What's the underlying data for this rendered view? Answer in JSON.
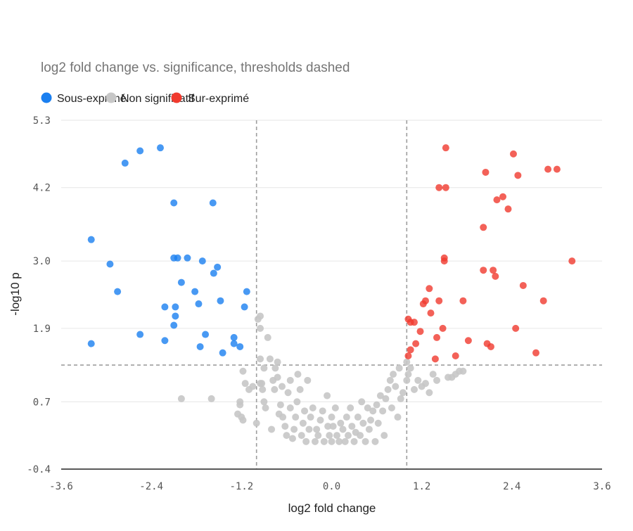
{
  "chart_data": {
    "type": "scatter",
    "subtitle": "log2 fold change vs. significance, thresholds dashed",
    "xlabel": "log2 fold change",
    "ylabel": "-log10 p",
    "xlim": [
      -3.6,
      3.6
    ],
    "ylim": [
      -0.4,
      5.3
    ],
    "x_ticks": [
      "-3.6",
      "-2.4",
      "-1.2",
      "0.0",
      "1.2",
      "2.4",
      "3.6"
    ],
    "y_ticks": [
      "-0.4",
      "0.7",
      "1.9",
      "3.0",
      "4.2",
      "5.3"
    ],
    "grid": "horizontal",
    "legend_position": "top-left",
    "thresholds": {
      "x": [
        -1.0,
        1.0
      ],
      "y": 1.3
    },
    "series": [
      {
        "name": "Sous-exprimé",
        "color": "#1a7ff0",
        "points": [
          [
            -3.2,
            3.35
          ],
          [
            -3.2,
            1.65
          ],
          [
            -2.95,
            2.95
          ],
          [
            -2.85,
            2.5
          ],
          [
            -2.75,
            4.6
          ],
          [
            -2.55,
            4.8
          ],
          [
            -2.55,
            1.8
          ],
          [
            -2.28,
            4.85
          ],
          [
            -2.22,
            2.25
          ],
          [
            -2.22,
            1.7
          ],
          [
            -2.1,
            3.95
          ],
          [
            -2.1,
            3.05
          ],
          [
            -2.1,
            1.95
          ],
          [
            -2.08,
            2.25
          ],
          [
            -2.08,
            2.1
          ],
          [
            -2.05,
            3.05
          ],
          [
            -2.0,
            2.65
          ],
          [
            -1.92,
            3.05
          ],
          [
            -1.82,
            2.5
          ],
          [
            -1.77,
            2.3
          ],
          [
            -1.75,
            1.6
          ],
          [
            -1.72,
            3.0
          ],
          [
            -1.68,
            1.8
          ],
          [
            -1.58,
            3.95
          ],
          [
            -1.57,
            2.8
          ],
          [
            -1.52,
            2.9
          ],
          [
            -1.48,
            2.35
          ],
          [
            -1.45,
            1.5
          ],
          [
            -1.3,
            1.75
          ],
          [
            -1.3,
            1.65
          ],
          [
            -1.22,
            1.6
          ],
          [
            -1.16,
            2.25
          ],
          [
            -1.13,
            2.5
          ]
        ]
      },
      {
        "name": "Non significatif",
        "color": "#c7c7c7",
        "points": [
          [
            -2.0,
            0.75
          ],
          [
            -1.6,
            0.75
          ],
          [
            -1.25,
            0.5
          ],
          [
            -1.22,
            0.7
          ],
          [
            -1.22,
            0.65
          ],
          [
            -1.2,
            0.45
          ],
          [
            -1.18,
            0.4
          ],
          [
            -1.18,
            1.2
          ],
          [
            -1.15,
            1.0
          ],
          [
            -1.1,
            0.9
          ],
          [
            -1.05,
            0.95
          ],
          [
            -1.0,
            0.35
          ],
          [
            -0.98,
            2.05
          ],
          [
            -0.95,
            2.1
          ],
          [
            -0.95,
            1.9
          ],
          [
            -0.95,
            1.4
          ],
          [
            -0.95,
            1.0
          ],
          [
            -0.93,
            1.0
          ],
          [
            -0.9,
            1.25
          ],
          [
            -0.92,
            0.9
          ],
          [
            -0.9,
            0.7
          ],
          [
            -0.88,
            0.6
          ],
          [
            -0.85,
            1.75
          ],
          [
            -0.82,
            1.4
          ],
          [
            -0.8,
            0.25
          ],
          [
            -0.78,
            1.05
          ],
          [
            -0.76,
            0.9
          ],
          [
            -0.75,
            1.25
          ],
          [
            -0.72,
            1.35
          ],
          [
            -0.72,
            1.1
          ],
          [
            -0.7,
            0.5
          ],
          [
            -0.68,
            0.65
          ],
          [
            -0.66,
            0.95
          ],
          [
            -0.65,
            0.45
          ],
          [
            -0.62,
            0.3
          ],
          [
            -0.6,
            0.15
          ],
          [
            -0.58,
            0.85
          ],
          [
            -0.55,
            1.05
          ],
          [
            -0.55,
            0.6
          ],
          [
            -0.52,
            0.1
          ],
          [
            -0.5,
            0.25
          ],
          [
            -0.48,
            0.45
          ],
          [
            -0.46,
            0.7
          ],
          [
            -0.45,
            1.15
          ],
          [
            -0.42,
            0.9
          ],
          [
            -0.4,
            0.15
          ],
          [
            -0.38,
            0.35
          ],
          [
            -0.36,
            0.55
          ],
          [
            -0.34,
            0.05
          ],
          [
            -0.32,
            1.05
          ],
          [
            -0.3,
            0.25
          ],
          [
            -0.28,
            0.45
          ],
          [
            -0.25,
            0.6
          ],
          [
            -0.22,
            0.05
          ],
          [
            -0.2,
            0.25
          ],
          [
            -0.18,
            0.15
          ],
          [
            -0.15,
            0.4
          ],
          [
            -0.12,
            0.55
          ],
          [
            -0.1,
            0.05
          ],
          [
            -0.06,
            0.8
          ],
          [
            -0.05,
            0.3
          ],
          [
            -0.03,
            0.15
          ],
          [
            0.0,
            0.05
          ],
          [
            0.0,
            0.45
          ],
          [
            0.02,
            0.3
          ],
          [
            0.05,
            0.6
          ],
          [
            0.07,
            0.15
          ],
          [
            0.1,
            0.05
          ],
          [
            0.12,
            0.35
          ],
          [
            0.15,
            0.25
          ],
          [
            0.18,
            0.05
          ],
          [
            0.2,
            0.45
          ],
          [
            0.22,
            0.15
          ],
          [
            0.25,
            0.6
          ],
          [
            0.27,
            0.3
          ],
          [
            0.3,
            0.05
          ],
          [
            0.32,
            0.2
          ],
          [
            0.35,
            0.45
          ],
          [
            0.38,
            0.15
          ],
          [
            0.4,
            0.7
          ],
          [
            0.42,
            0.35
          ],
          [
            0.45,
            0.05
          ],
          [
            0.48,
            0.6
          ],
          [
            0.5,
            0.25
          ],
          [
            0.52,
            0.4
          ],
          [
            0.55,
            0.55
          ],
          [
            0.58,
            0.05
          ],
          [
            0.6,
            0.65
          ],
          [
            0.62,
            0.35
          ],
          [
            0.65,
            0.8
          ],
          [
            0.68,
            0.55
          ],
          [
            0.7,
            0.15
          ],
          [
            0.72,
            0.75
          ],
          [
            0.75,
            0.9
          ],
          [
            0.78,
            1.05
          ],
          [
            0.8,
            0.6
          ],
          [
            0.82,
            1.15
          ],
          [
            0.85,
            0.95
          ],
          [
            0.88,
            0.45
          ],
          [
            0.9,
            1.25
          ],
          [
            0.92,
            0.75
          ],
          [
            0.95,
            0.85
          ],
          [
            1.0,
            1.35
          ],
          [
            1.0,
            1.05
          ],
          [
            1.02,
            1.15
          ],
          [
            1.05,
            1.25
          ],
          [
            1.1,
            0.9
          ],
          [
            1.15,
            1.05
          ],
          [
            1.2,
            0.95
          ],
          [
            1.25,
            1.0
          ],
          [
            1.3,
            0.85
          ],
          [
            1.35,
            1.15
          ],
          [
            1.4,
            1.05
          ],
          [
            1.55,
            1.1
          ],
          [
            1.6,
            1.1
          ],
          [
            1.65,
            1.15
          ],
          [
            1.7,
            1.2
          ],
          [
            1.75,
            1.2
          ]
        ]
      },
      {
        "name": "Sur-exprimé",
        "color": "#f03a2e",
        "points": [
          [
            1.02,
            2.05
          ],
          [
            1.05,
            2.0
          ],
          [
            1.1,
            2.0
          ],
          [
            1.05,
            1.55
          ],
          [
            1.02,
            1.45
          ],
          [
            1.12,
            1.65
          ],
          [
            1.18,
            1.85
          ],
          [
            1.22,
            2.3
          ],
          [
            1.25,
            2.35
          ],
          [
            1.3,
            2.55
          ],
          [
            1.32,
            2.15
          ],
          [
            1.38,
            1.4
          ],
          [
            1.4,
            1.75
          ],
          [
            1.43,
            2.35
          ],
          [
            1.43,
            4.2
          ],
          [
            1.48,
            1.9
          ],
          [
            1.5,
            3.05
          ],
          [
            1.5,
            3.0
          ],
          [
            1.52,
            4.85
          ],
          [
            1.52,
            4.2
          ],
          [
            1.65,
            1.45
          ],
          [
            1.75,
            2.35
          ],
          [
            1.82,
            1.7
          ],
          [
            2.02,
            3.55
          ],
          [
            2.02,
            2.85
          ],
          [
            2.05,
            4.45
          ],
          [
            2.07,
            1.65
          ],
          [
            2.12,
            1.6
          ],
          [
            2.15,
            2.85
          ],
          [
            2.18,
            2.75
          ],
          [
            2.2,
            4.0
          ],
          [
            2.28,
            4.05
          ],
          [
            2.35,
            3.85
          ],
          [
            2.42,
            4.75
          ],
          [
            2.45,
            1.9
          ],
          [
            2.48,
            4.4
          ],
          [
            2.55,
            2.6
          ],
          [
            2.72,
            1.5
          ],
          [
            2.82,
            2.35
          ],
          [
            2.88,
            4.5
          ],
          [
            3.0,
            4.5
          ],
          [
            3.2,
            3.0
          ]
        ]
      }
    ]
  },
  "legend": [
    {
      "label": "Sous-exprimé",
      "color": "#1a7ff0"
    },
    {
      "label": "Non significatif",
      "color": "#c7c7c7"
    },
    {
      "label": "Sur-exprimé",
      "color": "#f03a2e"
    }
  ]
}
